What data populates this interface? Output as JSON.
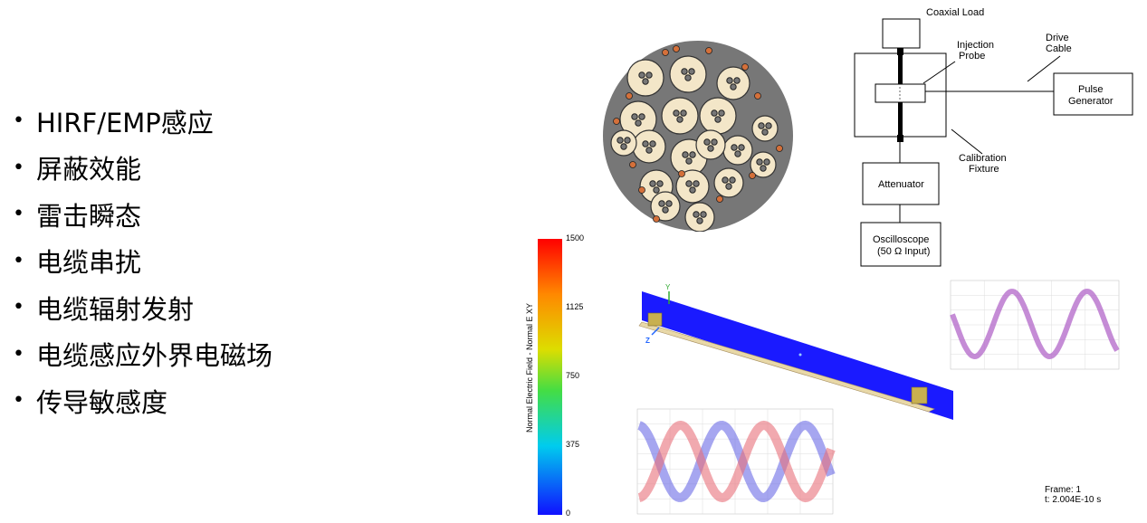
{
  "bullets": [
    "HIRF/EMP感应",
    "屏蔽效能",
    "雷击瞬态",
    "电缆串扰",
    "电缆辐射发射",
    "电缆感应外界电磁场",
    "传导敏感度"
  ],
  "schematic": {
    "coaxial_load": "Coaxial Load",
    "injection_probe_1": "Injection",
    "injection_probe_2": "Probe",
    "drive_cable_1": "Drive",
    "drive_cable_2": "Cable",
    "pulse_generator_1": "Pulse",
    "pulse_generator_2": "Generator",
    "calibration_fixture_1": "Calibration",
    "calibration_fixture_2": "Fixture",
    "attenuator": "Attenuator",
    "oscilloscope_1": "Oscilloscope",
    "oscilloscope_2": "(50 Ω Input)"
  },
  "colorbar": {
    "label": "Normal Electric Field - Normal E XY",
    "ticks": [
      "1500",
      "1125",
      "750",
      "375",
      "0"
    ]
  },
  "axes": {
    "y": "Y",
    "z": "Z"
  },
  "frame": {
    "line1": "Frame: 1",
    "line2": "t: 2.004E-10 s"
  },
  "colors": {
    "field_blue": "#1a1aff",
    "wave_purple": "#b266c8",
    "wave_red": "#e8707a",
    "wave_blue": "#6a6ae6",
    "cable_fill": "#f3e6c8",
    "cable_jacket": "#777777",
    "shield_orange": "#d4703a"
  }
}
